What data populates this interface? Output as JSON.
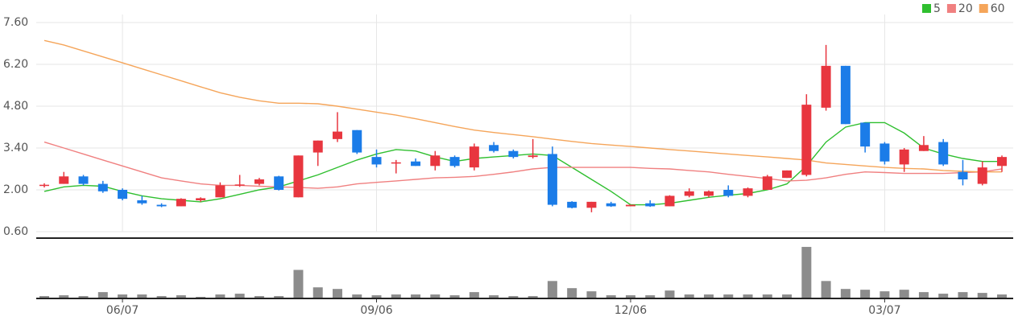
{
  "chart_data": {
    "type": "candlestick",
    "categories": [
      null,
      null,
      null,
      null,
      "06/07",
      null,
      null,
      null,
      null,
      null,
      null,
      null,
      null,
      null,
      null,
      null,
      null,
      "09/06",
      null,
      null,
      null,
      null,
      null,
      null,
      null,
      null,
      null,
      null,
      null,
      null,
      "12/06",
      null,
      null,
      null,
      null,
      null,
      null,
      null,
      null,
      null,
      null,
      null,
      null,
      "03/07",
      null,
      null,
      null,
      null,
      null,
      null
    ],
    "open": [
      2.13,
      2.2,
      2.45,
      2.2,
      2.0,
      1.65,
      1.5,
      1.45,
      1.65,
      1.75,
      2.15,
      2.2,
      2.45,
      1.75,
      3.25,
      3.7,
      4.0,
      3.1,
      2.9,
      2.95,
      2.8,
      3.1,
      2.75,
      3.5,
      3.3,
      3.1,
      3.2,
      1.6,
      1.4,
      1.55,
      1.45,
      1.55,
      1.45,
      1.8,
      1.8,
      2.0,
      1.8,
      2.0,
      2.4,
      2.5,
      4.75,
      6.15,
      4.25,
      3.55,
      2.85,
      3.3,
      3.6,
      2.6,
      2.2,
      2.8
    ],
    "high": [
      2.22,
      2.6,
      2.5,
      2.3,
      2.05,
      1.8,
      1.55,
      1.72,
      1.75,
      2.25,
      2.5,
      2.4,
      2.47,
      3.15,
      3.65,
      4.6,
      4.0,
      3.35,
      3.0,
      3.05,
      3.3,
      3.15,
      3.55,
      3.6,
      3.35,
      3.7,
      3.45,
      1.62,
      1.6,
      1.6,
      1.5,
      1.65,
      1.82,
      2.05,
      1.98,
      2.15,
      2.08,
      2.5,
      2.65,
      5.2,
      6.85,
      6.15,
      4.25,
      3.6,
      3.4,
      3.8,
      3.7,
      3.0,
      2.95,
      3.15
    ],
    "low": [
      2.08,
      2.2,
      2.15,
      1.9,
      1.65,
      1.5,
      1.42,
      1.45,
      1.6,
      1.75,
      2.1,
      2.15,
      1.98,
      1.75,
      2.8,
      3.6,
      3.2,
      2.75,
      2.55,
      2.8,
      2.65,
      2.75,
      2.65,
      3.25,
      3.05,
      3.05,
      1.45,
      1.38,
      1.25,
      1.43,
      1.45,
      1.43,
      1.45,
      1.75,
      1.75,
      1.75,
      1.75,
      2.0,
      2.4,
      2.45,
      4.65,
      4.2,
      3.25,
      2.85,
      2.6,
      3.3,
      2.8,
      2.15,
      2.15,
      2.6
    ],
    "close": [
      2.17,
      2.45,
      2.2,
      1.95,
      1.7,
      1.55,
      1.45,
      1.7,
      1.72,
      2.15,
      2.18,
      2.35,
      2.0,
      3.15,
      3.65,
      3.95,
      3.25,
      2.85,
      2.92,
      2.8,
      3.15,
      2.8,
      3.45,
      3.3,
      3.1,
      3.15,
      1.5,
      1.4,
      1.6,
      1.45,
      1.5,
      1.45,
      1.8,
      1.95,
      1.95,
      1.8,
      2.05,
      2.45,
      2.65,
      4.85,
      6.15,
      4.2,
      3.45,
      2.95,
      3.35,
      3.5,
      2.85,
      2.35,
      2.75,
      3.1
    ],
    "up_color": "#e8363f",
    "down_color": "#1b7ce8",
    "series": [
      {
        "name": "5",
        "color": "#2fbf2f",
        "values": [
          1.95,
          2.1,
          2.15,
          2.12,
          1.95,
          1.8,
          1.7,
          1.65,
          1.6,
          1.7,
          1.85,
          2.0,
          2.1,
          2.3,
          2.5,
          2.75,
          3.0,
          3.2,
          3.35,
          3.3,
          3.1,
          2.95,
          3.05,
          3.1,
          3.15,
          3.2,
          3.15,
          2.75,
          2.35,
          1.95,
          1.5,
          1.5,
          1.55,
          1.65,
          1.75,
          1.82,
          1.88,
          2.0,
          2.2,
          2.8,
          3.6,
          4.1,
          4.25,
          4.25,
          3.9,
          3.4,
          3.2,
          3.05,
          2.95,
          2.95
        ]
      },
      {
        "name": "20",
        "color": "#f08080",
        "values": [
          3.6,
          3.4,
          3.2,
          3.0,
          2.8,
          2.6,
          2.4,
          2.3,
          2.2,
          2.15,
          2.15,
          2.12,
          2.1,
          2.08,
          2.05,
          2.1,
          2.2,
          2.25,
          2.3,
          2.35,
          2.4,
          2.42,
          2.45,
          2.52,
          2.6,
          2.7,
          2.75,
          2.75,
          2.75,
          2.75,
          2.75,
          2.72,
          2.7,
          2.65,
          2.6,
          2.52,
          2.45,
          2.38,
          2.3,
          2.32,
          2.4,
          2.52,
          2.6,
          2.58,
          2.55,
          2.55,
          2.55,
          2.58,
          2.6,
          2.7
        ]
      },
      {
        "name": "60",
        "color": "#f5a55a",
        "values": [
          7.0,
          6.85,
          6.65,
          6.45,
          6.25,
          6.05,
          5.85,
          5.65,
          5.45,
          5.25,
          5.1,
          4.98,
          4.9,
          4.9,
          4.88,
          4.8,
          4.7,
          4.6,
          4.5,
          4.38,
          4.25,
          4.12,
          4.0,
          3.92,
          3.85,
          3.78,
          3.7,
          3.62,
          3.55,
          3.5,
          3.45,
          3.4,
          3.35,
          3.3,
          3.25,
          3.2,
          3.15,
          3.1,
          3.05,
          3.0,
          2.9,
          2.85,
          2.8,
          2.75,
          2.72,
          2.7,
          2.65,
          2.62,
          2.6,
          2.6
        ]
      }
    ],
    "ylim": [
      0.6,
      7.6
    ],
    "yticks": [
      {
        "value": 7.6,
        "label": "7.60"
      },
      {
        "value": 6.2,
        "label": "6.20"
      },
      {
        "value": 4.8,
        "label": "4.80"
      },
      {
        "value": 3.4,
        "label": "3.40"
      },
      {
        "value": 2.0,
        "label": "2.00"
      },
      {
        "value": 0.6,
        "label": "0.60"
      }
    ],
    "volume": [
      3,
      4,
      3,
      8,
      5,
      5,
      3,
      4,
      2,
      5,
      6,
      3,
      3,
      36,
      14,
      12,
      5,
      4,
      5,
      5,
      5,
      4,
      8,
      4,
      3,
      3,
      22,
      13,
      9,
      4,
      4,
      4,
      10,
      5,
      5,
      5,
      5,
      5,
      5,
      65,
      22,
      12,
      11,
      9,
      11,
      8,
      6,
      8,
      7,
      5
    ],
    "volume_ylim": [
      0,
      70
    ],
    "volume_color": "#8c8c8c",
    "grid": true
  }
}
